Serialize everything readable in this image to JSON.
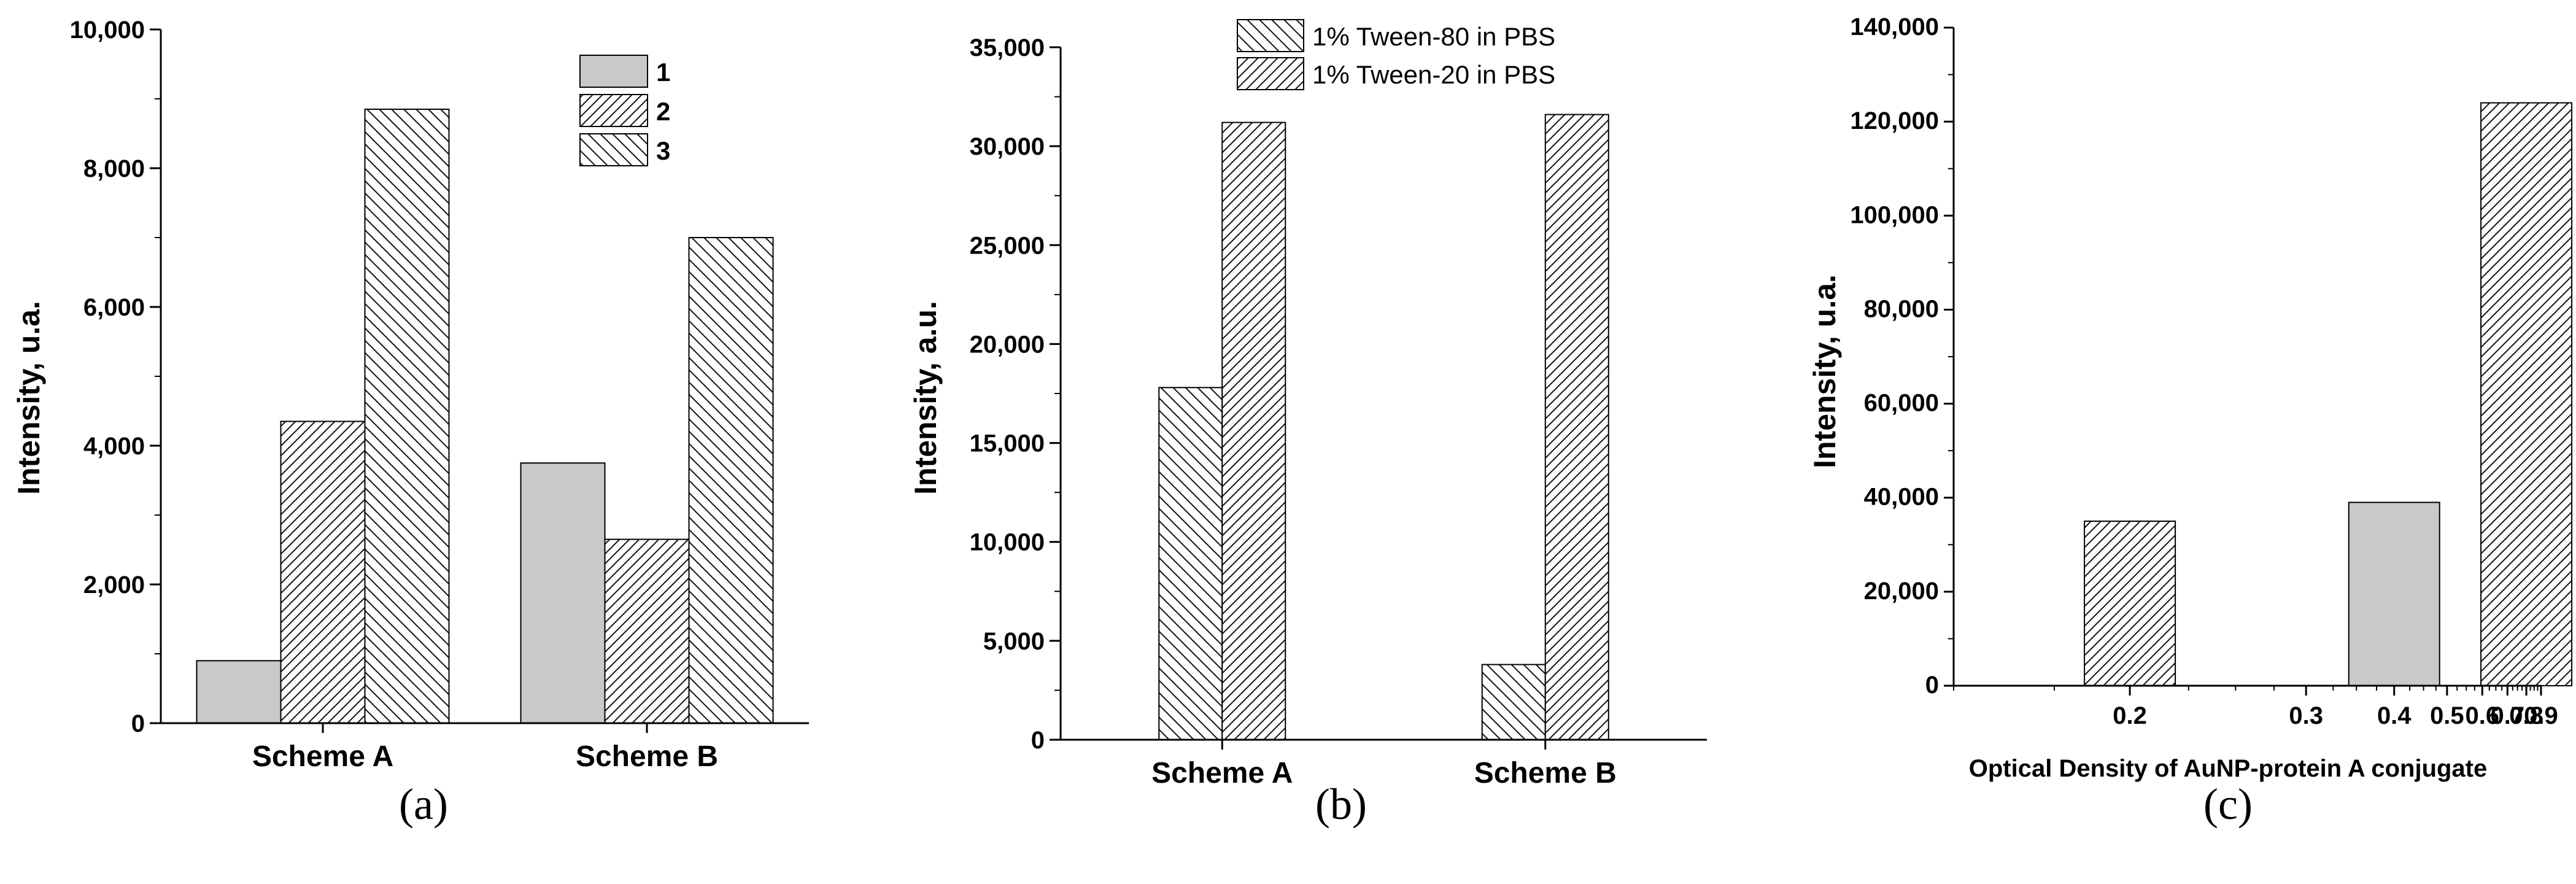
{
  "chart_data": [
    {
      "type": "bar",
      "panel_label": "(a)",
      "categories": [
        "Scheme A",
        "Scheme B"
      ],
      "ylabel": "Intensity, u.a.",
      "xlabel": "",
      "ylim": [
        0,
        10000
      ],
      "yticks": [
        "0",
        "2,000",
        "4,000",
        "6,000",
        "8,000",
        "10,000"
      ],
      "legend_position": "top-right",
      "series": [
        {
          "name": "1",
          "values": [
            900,
            3750
          ],
          "fill": "solid-gray"
        },
        {
          "name": "2",
          "values": [
            4350,
            2650
          ],
          "fill": "hatch-forward"
        },
        {
          "name": "3",
          "values": [
            8850,
            7000
          ],
          "fill": "hatch-back"
        }
      ]
    },
    {
      "type": "bar",
      "panel_label": "(b)",
      "categories": [
        "Scheme A",
        "Scheme B"
      ],
      "ylabel": "Intensity, a.u.",
      "xlabel": "",
      "ylim": [
        0,
        35000
      ],
      "yticks": [
        "0",
        "5,000",
        "10,000",
        "15,000",
        "20,000",
        "25,000",
        "30,000",
        "35,000"
      ],
      "legend_position": "top",
      "series": [
        {
          "name": "1% Tween-80 in PBS",
          "values": [
            17800,
            3800
          ],
          "fill": "hatch-back"
        },
        {
          "name": "1% Tween-20 in PBS",
          "values": [
            31200,
            31600
          ],
          "fill": "hatch-forward"
        }
      ]
    },
    {
      "type": "bar",
      "panel_label": "(c)",
      "x": [
        0.2,
        0.4,
        0.8
      ],
      "values": [
        35000,
        39000,
        124000
      ],
      "fills": [
        "hatch-forward",
        "solid-gray",
        "hatch-forward"
      ],
      "xlabel": "Optical Density of AuNP-protein A conjugate",
      "ylabel": "Intensity, u.a.",
      "ylim": [
        0,
        140000
      ],
      "xlim": [
        0.15,
        0.9
      ],
      "x_scale": "reciprocal",
      "yticks": [
        "0",
        "20,000",
        "40,000",
        "60,000",
        "80,000",
        "100,000",
        "120,000",
        "140,000"
      ],
      "xticks": [
        {
          "value": 0.2,
          "label": "0.2"
        },
        {
          "value": 0.3,
          "label": "0.3"
        },
        {
          "value": 0.4,
          "label": "0.4"
        },
        {
          "value": 0.5,
          "label": "0.5"
        },
        {
          "value": 0.6,
          "label": "0.6"
        },
        {
          "value": 0.7,
          "label": "0.7"
        },
        {
          "value": 0.8,
          "label": "0.8"
        },
        {
          "value": 0.9,
          "label": "0.9"
        }
      ]
    }
  ],
  "colors": {
    "solid_gray": "#c9c9c9",
    "hatch_line": "#111111",
    "axis": "#000000"
  }
}
